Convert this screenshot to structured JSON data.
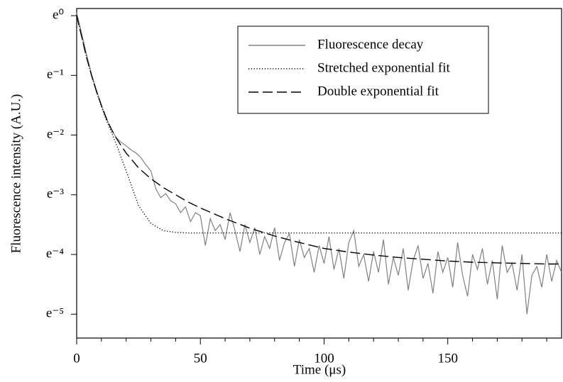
{
  "chart_data": {
    "type": "line",
    "xlabel": "Time (μs)",
    "ylabel": "Fluorescence intensity (A.U.)",
    "xlim": [
      0,
      196
    ],
    "xticks": [
      0,
      50,
      100,
      150
    ],
    "xminorticks": [
      10,
      20,
      30,
      40,
      60,
      70,
      80,
      90,
      110,
      120,
      130,
      140,
      160,
      170,
      180,
      190
    ],
    "ylim": [
      -5.4,
      0.12
    ],
    "yticks": [
      {
        "value": 0,
        "label": "e⁰"
      },
      {
        "value": -1,
        "label": "e⁻¹"
      },
      {
        "value": -2,
        "label": "e⁻²"
      },
      {
        "value": -3,
        "label": "e⁻³"
      },
      {
        "value": -4,
        "label": "e⁻⁴"
      },
      {
        "value": -5,
        "label": "e⁻⁵"
      }
    ],
    "legend": "upper right",
    "series": [
      {
        "name": "Fluorescence decay",
        "color": "#808080",
        "style": "solid",
        "x": [
          0,
          2,
          4,
          6,
          8,
          10,
          12,
          14,
          16,
          18,
          20,
          22,
          24,
          26,
          28,
          30,
          32,
          34,
          36,
          38,
          40,
          42,
          44,
          46,
          48,
          50,
          52,
          54,
          56,
          58,
          60,
          62,
          64,
          66,
          68,
          70,
          72,
          74,
          76,
          78,
          80,
          82,
          84,
          86,
          88,
          90,
          92,
          94,
          96,
          98,
          100,
          102,
          104,
          106,
          108,
          110,
          112,
          114,
          116,
          118,
          120,
          122,
          124,
          126,
          128,
          130,
          132,
          134,
          136,
          138,
          140,
          142,
          144,
          146,
          148,
          150,
          152,
          154,
          156,
          158,
          160,
          162,
          164,
          166,
          168,
          170,
          172,
          174,
          176,
          178,
          180,
          182,
          184,
          186,
          188,
          190,
          192,
          194,
          196
        ],
        "values": [
          0.05,
          -0.3,
          -0.65,
          -0.98,
          -1.25,
          -1.5,
          -1.72,
          -1.9,
          -2.05,
          -2.12,
          -2.18,
          -2.25,
          -2.3,
          -2.38,
          -2.5,
          -2.6,
          -2.9,
          -3.05,
          -2.98,
          -3.1,
          -3.15,
          -3.3,
          -3.2,
          -3.45,
          -3.3,
          -3.35,
          -3.85,
          -3.4,
          -3.6,
          -3.5,
          -3.75,
          -3.3,
          -3.6,
          -3.95,
          -3.5,
          -3.8,
          -3.55,
          -4.0,
          -3.7,
          -3.9,
          -3.55,
          -4.1,
          -3.8,
          -3.65,
          -4.2,
          -3.75,
          -4.05,
          -3.9,
          -4.3,
          -3.85,
          -4.15,
          -3.7,
          -4.25,
          -3.9,
          -4.4,
          -3.8,
          -3.6,
          -4.2,
          -4.0,
          -4.45,
          -3.95,
          -4.3,
          -3.75,
          -4.5,
          -4.05,
          -4.35,
          -3.9,
          -4.6,
          -4.1,
          -3.85,
          -4.4,
          -4.15,
          -4.65,
          -3.95,
          -4.3,
          -4.05,
          -4.55,
          -3.8,
          -4.35,
          -4.7,
          -4.0,
          -4.25,
          -3.9,
          -4.5,
          -4.1,
          -4.75,
          -3.85,
          -4.3,
          -4.15,
          -4.6,
          -4.0,
          -5.0,
          -4.35,
          -4.2,
          -4.55,
          -4.0,
          -4.45,
          -4.1,
          -4.3
        ]
      },
      {
        "name": "Stretched exponential fit",
        "color": "#000000",
        "style": "dotted",
        "x": [
          0,
          2,
          4,
          6,
          8,
          10,
          12,
          14,
          16,
          18,
          20,
          25,
          30,
          35,
          40,
          45,
          50,
          100,
          150,
          196
        ],
        "values": [
          0,
          -0.35,
          -0.7,
          -1.0,
          -1.28,
          -1.52,
          -1.75,
          -1.95,
          -2.15,
          -2.38,
          -2.6,
          -3.18,
          -3.48,
          -3.6,
          -3.63,
          -3.64,
          -3.64,
          -3.64,
          -3.64,
          -3.64
        ]
      },
      {
        "name": "Double exponential fit",
        "color": "#000000",
        "style": "dashed",
        "x": [
          0,
          2,
          4,
          6,
          8,
          10,
          12,
          14,
          16,
          18,
          20,
          25,
          30,
          35,
          40,
          45,
          50,
          60,
          70,
          80,
          90,
          100,
          110,
          120,
          130,
          140,
          150,
          160,
          170,
          180,
          190,
          196
        ],
        "values": [
          0,
          -0.35,
          -0.7,
          -1.0,
          -1.27,
          -1.5,
          -1.72,
          -1.9,
          -2.05,
          -2.18,
          -2.3,
          -2.55,
          -2.73,
          -2.88,
          -3.0,
          -3.12,
          -3.22,
          -3.4,
          -3.56,
          -3.69,
          -3.8,
          -3.9,
          -3.96,
          -4.01,
          -4.05,
          -4.08,
          -4.11,
          -4.13,
          -4.14,
          -4.15,
          -4.16,
          -4.16
        ]
      }
    ]
  }
}
